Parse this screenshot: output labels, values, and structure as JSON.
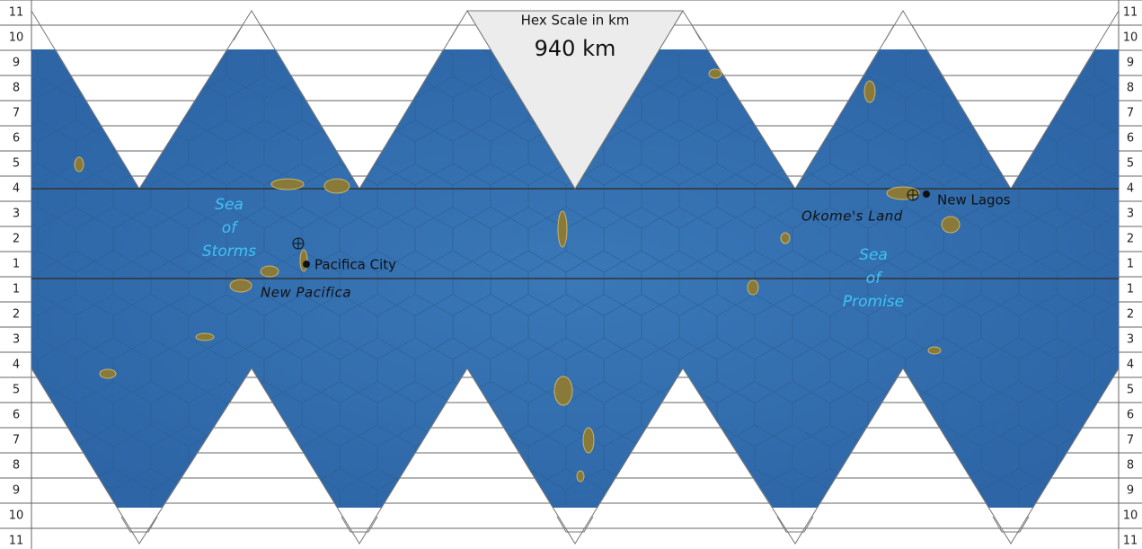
{
  "scale": {
    "title": "Hex Scale in km",
    "value": "940 km"
  },
  "row_labels": [
    "11",
    "10",
    "9",
    "8",
    "7",
    "6",
    "5",
    "4",
    "3",
    "2",
    "1",
    "1",
    "2",
    "3",
    "4",
    "5",
    "6",
    "7",
    "8",
    "9",
    "10",
    "11"
  ],
  "seas": [
    {
      "lines": [
        "Sea",
        "of",
        "Storms"
      ]
    },
    {
      "lines": [
        "Sea",
        "of",
        "Promise"
      ]
    }
  ],
  "places": [
    {
      "label": "Pacifica City"
    },
    {
      "label": "New Pacifica"
    },
    {
      "label": "Okome's Land"
    },
    {
      "label": "New Lagos"
    }
  ]
}
